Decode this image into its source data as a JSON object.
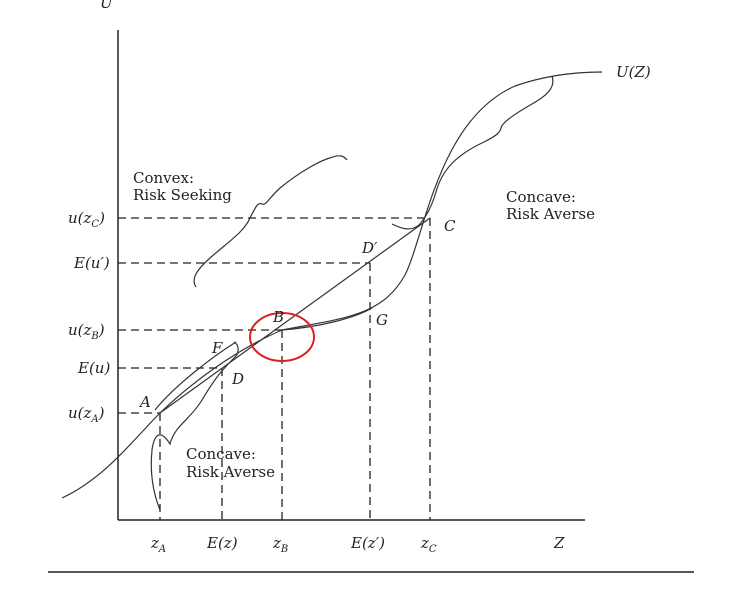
{
  "axes": {
    "y_label": "U",
    "x_label": "Z"
  },
  "curve_label": "U(Z)",
  "regions": {
    "convex_title": "Convex:",
    "convex_sub": "Risk Seeking",
    "concave_top_title": "Concave:",
    "concave_top_sub": "Risk Averse",
    "concave_bottom_title": "Concave:",
    "concave_bottom_sub": "Risk Averse"
  },
  "points": {
    "A": "A",
    "B": "B",
    "C": "C",
    "D": "D",
    "D_prime": "D′",
    "F": "F",
    "G": "G"
  },
  "y_ticks": [
    {
      "main": "u(z",
      "sub": "C",
      "end": ")"
    },
    {
      "main": "E(u′)",
      "sub": "",
      "end": ""
    },
    {
      "main": "u(z",
      "sub": "B",
      "end": ")"
    },
    {
      "main": "E(u)",
      "sub": "",
      "end": ""
    },
    {
      "main": "u(z",
      "sub": "A",
      "end": ")"
    }
  ],
  "x_ticks": [
    {
      "main": "z",
      "sub": "A",
      "end": ""
    },
    {
      "main": "E(z)",
      "sub": "",
      "end": ""
    },
    {
      "main": "z",
      "sub": "B",
      "end": ""
    },
    {
      "main": "E(z′)",
      "sub": "",
      "end": ""
    },
    {
      "main": "z",
      "sub": "C",
      "end": ""
    }
  ],
  "highlight_color": "#e02020"
}
